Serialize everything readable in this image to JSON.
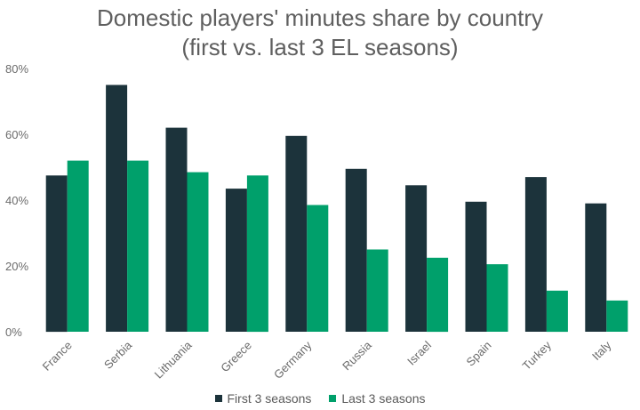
{
  "chart_data": {
    "type": "bar",
    "title_line1": "Domestic players' minutes share by country",
    "title_line2": "(first vs. last 3 EL seasons)",
    "categories": [
      "France",
      "Serbia",
      "Lithuania",
      "Greece",
      "Germany",
      "Russia",
      "Israel",
      "Spain",
      "Turkey",
      "Italy"
    ],
    "series": [
      {
        "name": "First 3 seasons",
        "color": "#1c333b",
        "values": [
          47.5,
          75,
          62,
          43.5,
          59.5,
          49.5,
          44.5,
          39.5,
          47,
          39
        ]
      },
      {
        "name": "Last 3 seasons",
        "color": "#00a06b",
        "values": [
          52,
          52,
          48.5,
          47.5,
          38.5,
          25,
          22.5,
          20.5,
          12.5,
          9.5
        ]
      }
    ],
    "y_ticks": [
      "0%",
      "20%",
      "40%",
      "60%",
      "80%"
    ],
    "ylim": [
      0,
      80
    ],
    "grid": false,
    "legend_position": "bottom"
  }
}
